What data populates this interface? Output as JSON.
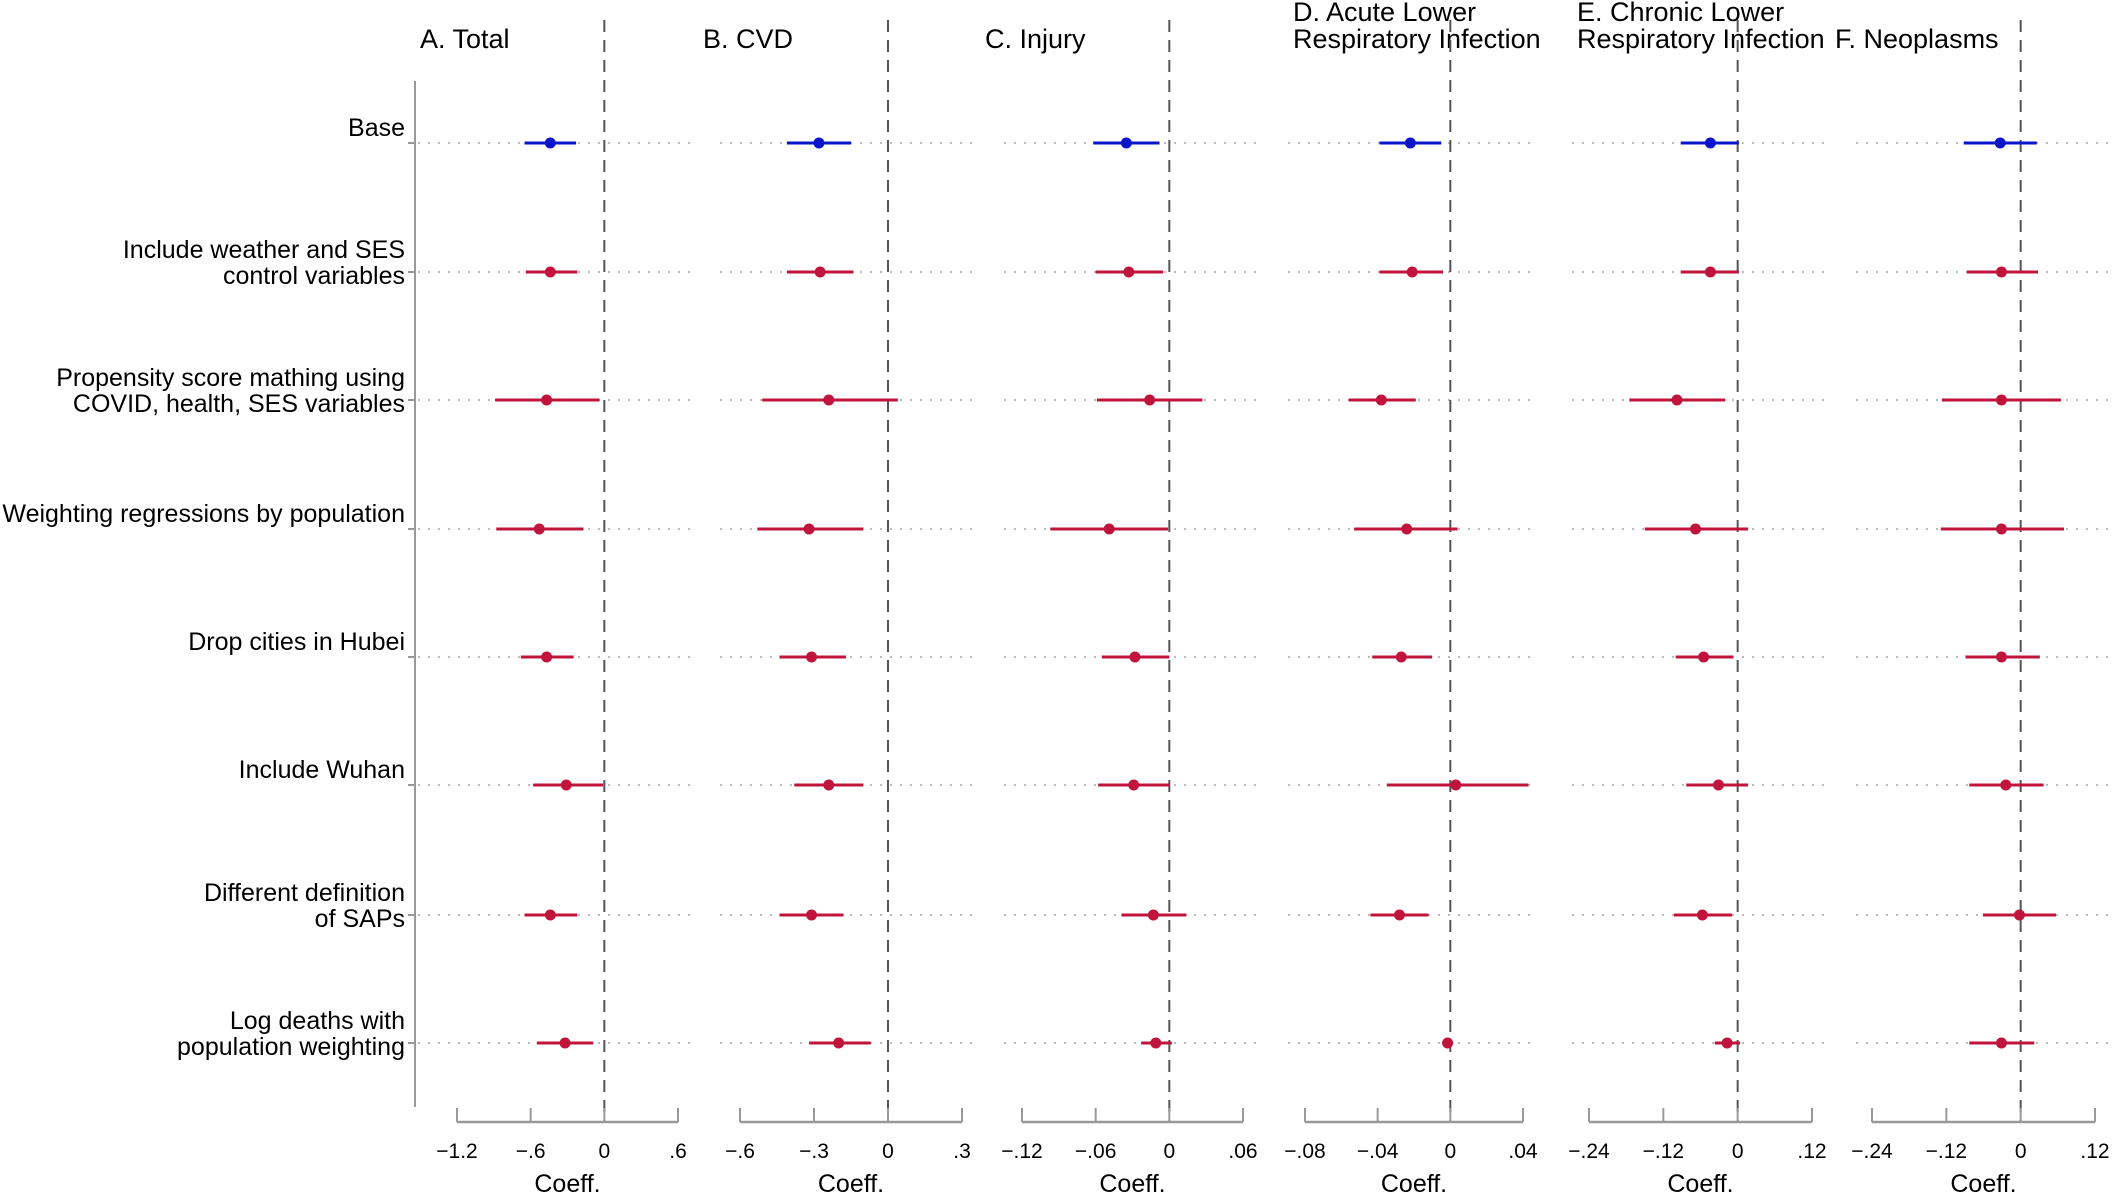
{
  "colors": {
    "base": "#0a14c8",
    "robust": "#c0143c",
    "axis": "#999999",
    "zero_line": "#555555",
    "guide": "#bbbbbb"
  },
  "row_labels": [
    [
      "Base"
    ],
    [
      "Include weather and SES",
      "control variables"
    ],
    [
      "Propensity score mathing using",
      "COVID, health, SES variables"
    ],
    [
      "Weighting regressions by population"
    ],
    [
      "Drop cities in Hubei"
    ],
    [
      "Include Wuhan"
    ],
    [
      "Different definition",
      "of SAPs"
    ],
    [
      "Log deaths with",
      "population weighting"
    ]
  ],
  "chart_data": [
    {
      "type": "scatter",
      "title": [
        "A. Total"
      ],
      "xlabel": "Coeff.",
      "xlim": [
        -1.2,
        0.6
      ],
      "ticks": [
        -1.2,
        -0.6,
        0,
        0.6
      ],
      "tick_labels": [
        "−1.2",
        "−.6",
        "0",
        ".6"
      ],
      "estimates": [
        -0.44,
        -0.44,
        -0.47,
        -0.53,
        -0.47,
        -0.31,
        -0.44,
        -0.32
      ],
      "ci_low": [
        -0.65,
        -0.64,
        -0.89,
        -0.88,
        -0.68,
        -0.58,
        -0.65,
        -0.55
      ],
      "ci_high": [
        -0.23,
        -0.22,
        -0.04,
        -0.17,
        -0.25,
        -0.01,
        -0.22,
        -0.09
      ]
    },
    {
      "type": "scatter",
      "title": [
        "B. CVD"
      ],
      "xlabel": "Coeff.",
      "xlim": [
        -0.6,
        0.3
      ],
      "ticks": [
        -0.6,
        -0.3,
        0,
        0.3
      ],
      "tick_labels": [
        "−.6",
        "−.3",
        "0",
        ".3"
      ],
      "estimates": [
        -0.28,
        -0.275,
        -0.24,
        -0.32,
        -0.31,
        -0.24,
        -0.31,
        -0.2
      ],
      "ci_low": [
        -0.41,
        -0.41,
        -0.51,
        -0.53,
        -0.44,
        -0.38,
        -0.44,
        -0.32
      ],
      "ci_high": [
        -0.15,
        -0.14,
        0.04,
        -0.1,
        -0.17,
        -0.1,
        -0.18,
        -0.07
      ]
    },
    {
      "type": "scatter",
      "title": [
        "C. Injury"
      ],
      "xlabel": "Coeff.",
      "xlim": [
        -0.12,
        0.06
      ],
      "ticks": [
        -0.12,
        -0.06,
        0,
        0.06
      ],
      "tick_labels": [
        "−.12",
        "−.06",
        "0",
        ".06"
      ],
      "estimates": [
        -0.035,
        -0.033,
        -0.016,
        -0.049,
        -0.028,
        -0.029,
        -0.013,
        -0.011
      ],
      "ci_low": [
        -0.062,
        -0.06,
        -0.059,
        -0.097,
        -0.055,
        -0.058,
        -0.039,
        -0.023
      ],
      "ci_high": [
        -0.008,
        -0.005,
        0.027,
        -0.001,
        0.0,
        0.0,
        0.014,
        0.002
      ]
    },
    {
      "type": "scatter",
      "title": [
        "D. Acute Lower",
        "Respiratory Infection"
      ],
      "xlabel": "Coeff.",
      "xlim": [
        -0.08,
        0.04
      ],
      "ticks": [
        -0.08,
        -0.04,
        0,
        0.04
      ],
      "tick_labels": [
        "−.08",
        "−.04",
        "0",
        ".04"
      ],
      "estimates": [
        -0.022,
        -0.021,
        -0.038,
        -0.024,
        -0.027,
        0.003,
        -0.028,
        -0.0015
      ],
      "ci_low": [
        -0.039,
        -0.039,
        -0.056,
        -0.053,
        -0.043,
        -0.035,
        -0.044,
        -0.002
      ],
      "ci_high": [
        -0.005,
        -0.004,
        -0.019,
        0.004,
        -0.01,
        0.043,
        -0.012,
        -0.001
      ]
    },
    {
      "type": "scatter",
      "title": [
        "E. Chronic Lower",
        "Respiratory Infection"
      ],
      "xlabel": "Coeff.",
      "xlim": [
        -0.24,
        0.12
      ],
      "ticks": [
        -0.24,
        -0.12,
        0,
        0.12
      ],
      "tick_labels": [
        "−.24",
        "−.12",
        "0",
        ".12"
      ],
      "estimates": [
        -0.044,
        -0.044,
        -0.098,
        -0.068,
        -0.055,
        -0.031,
        -0.057,
        -0.017
      ],
      "ci_low": [
        -0.092,
        -0.092,
        -0.175,
        -0.15,
        -0.1,
        -0.083,
        -0.103,
        -0.037
      ],
      "ci_high": [
        0.002,
        0.002,
        -0.02,
        0.017,
        -0.007,
        0.017,
        -0.009,
        0.004
      ]
    },
    {
      "type": "scatter",
      "title": [
        "F. Neoplasms"
      ],
      "xlabel": "Coeff.",
      "xlim": [
        -0.24,
        0.12
      ],
      "ticks": [
        -0.24,
        -0.12,
        0,
        0.12
      ],
      "tick_labels": [
        "−.24",
        "−.12",
        "0",
        ".12"
      ],
      "estimates": [
        -0.033,
        -0.031,
        -0.031,
        -0.031,
        -0.031,
        -0.024,
        -0.002,
        -0.031
      ],
      "ci_low": [
        -0.092,
        -0.087,
        -0.127,
        -0.129,
        -0.089,
        -0.083,
        -0.061,
        -0.083
      ],
      "ci_high": [
        0.026,
        0.028,
        0.065,
        0.07,
        0.031,
        0.037,
        0.057,
        0.022
      ]
    }
  ]
}
